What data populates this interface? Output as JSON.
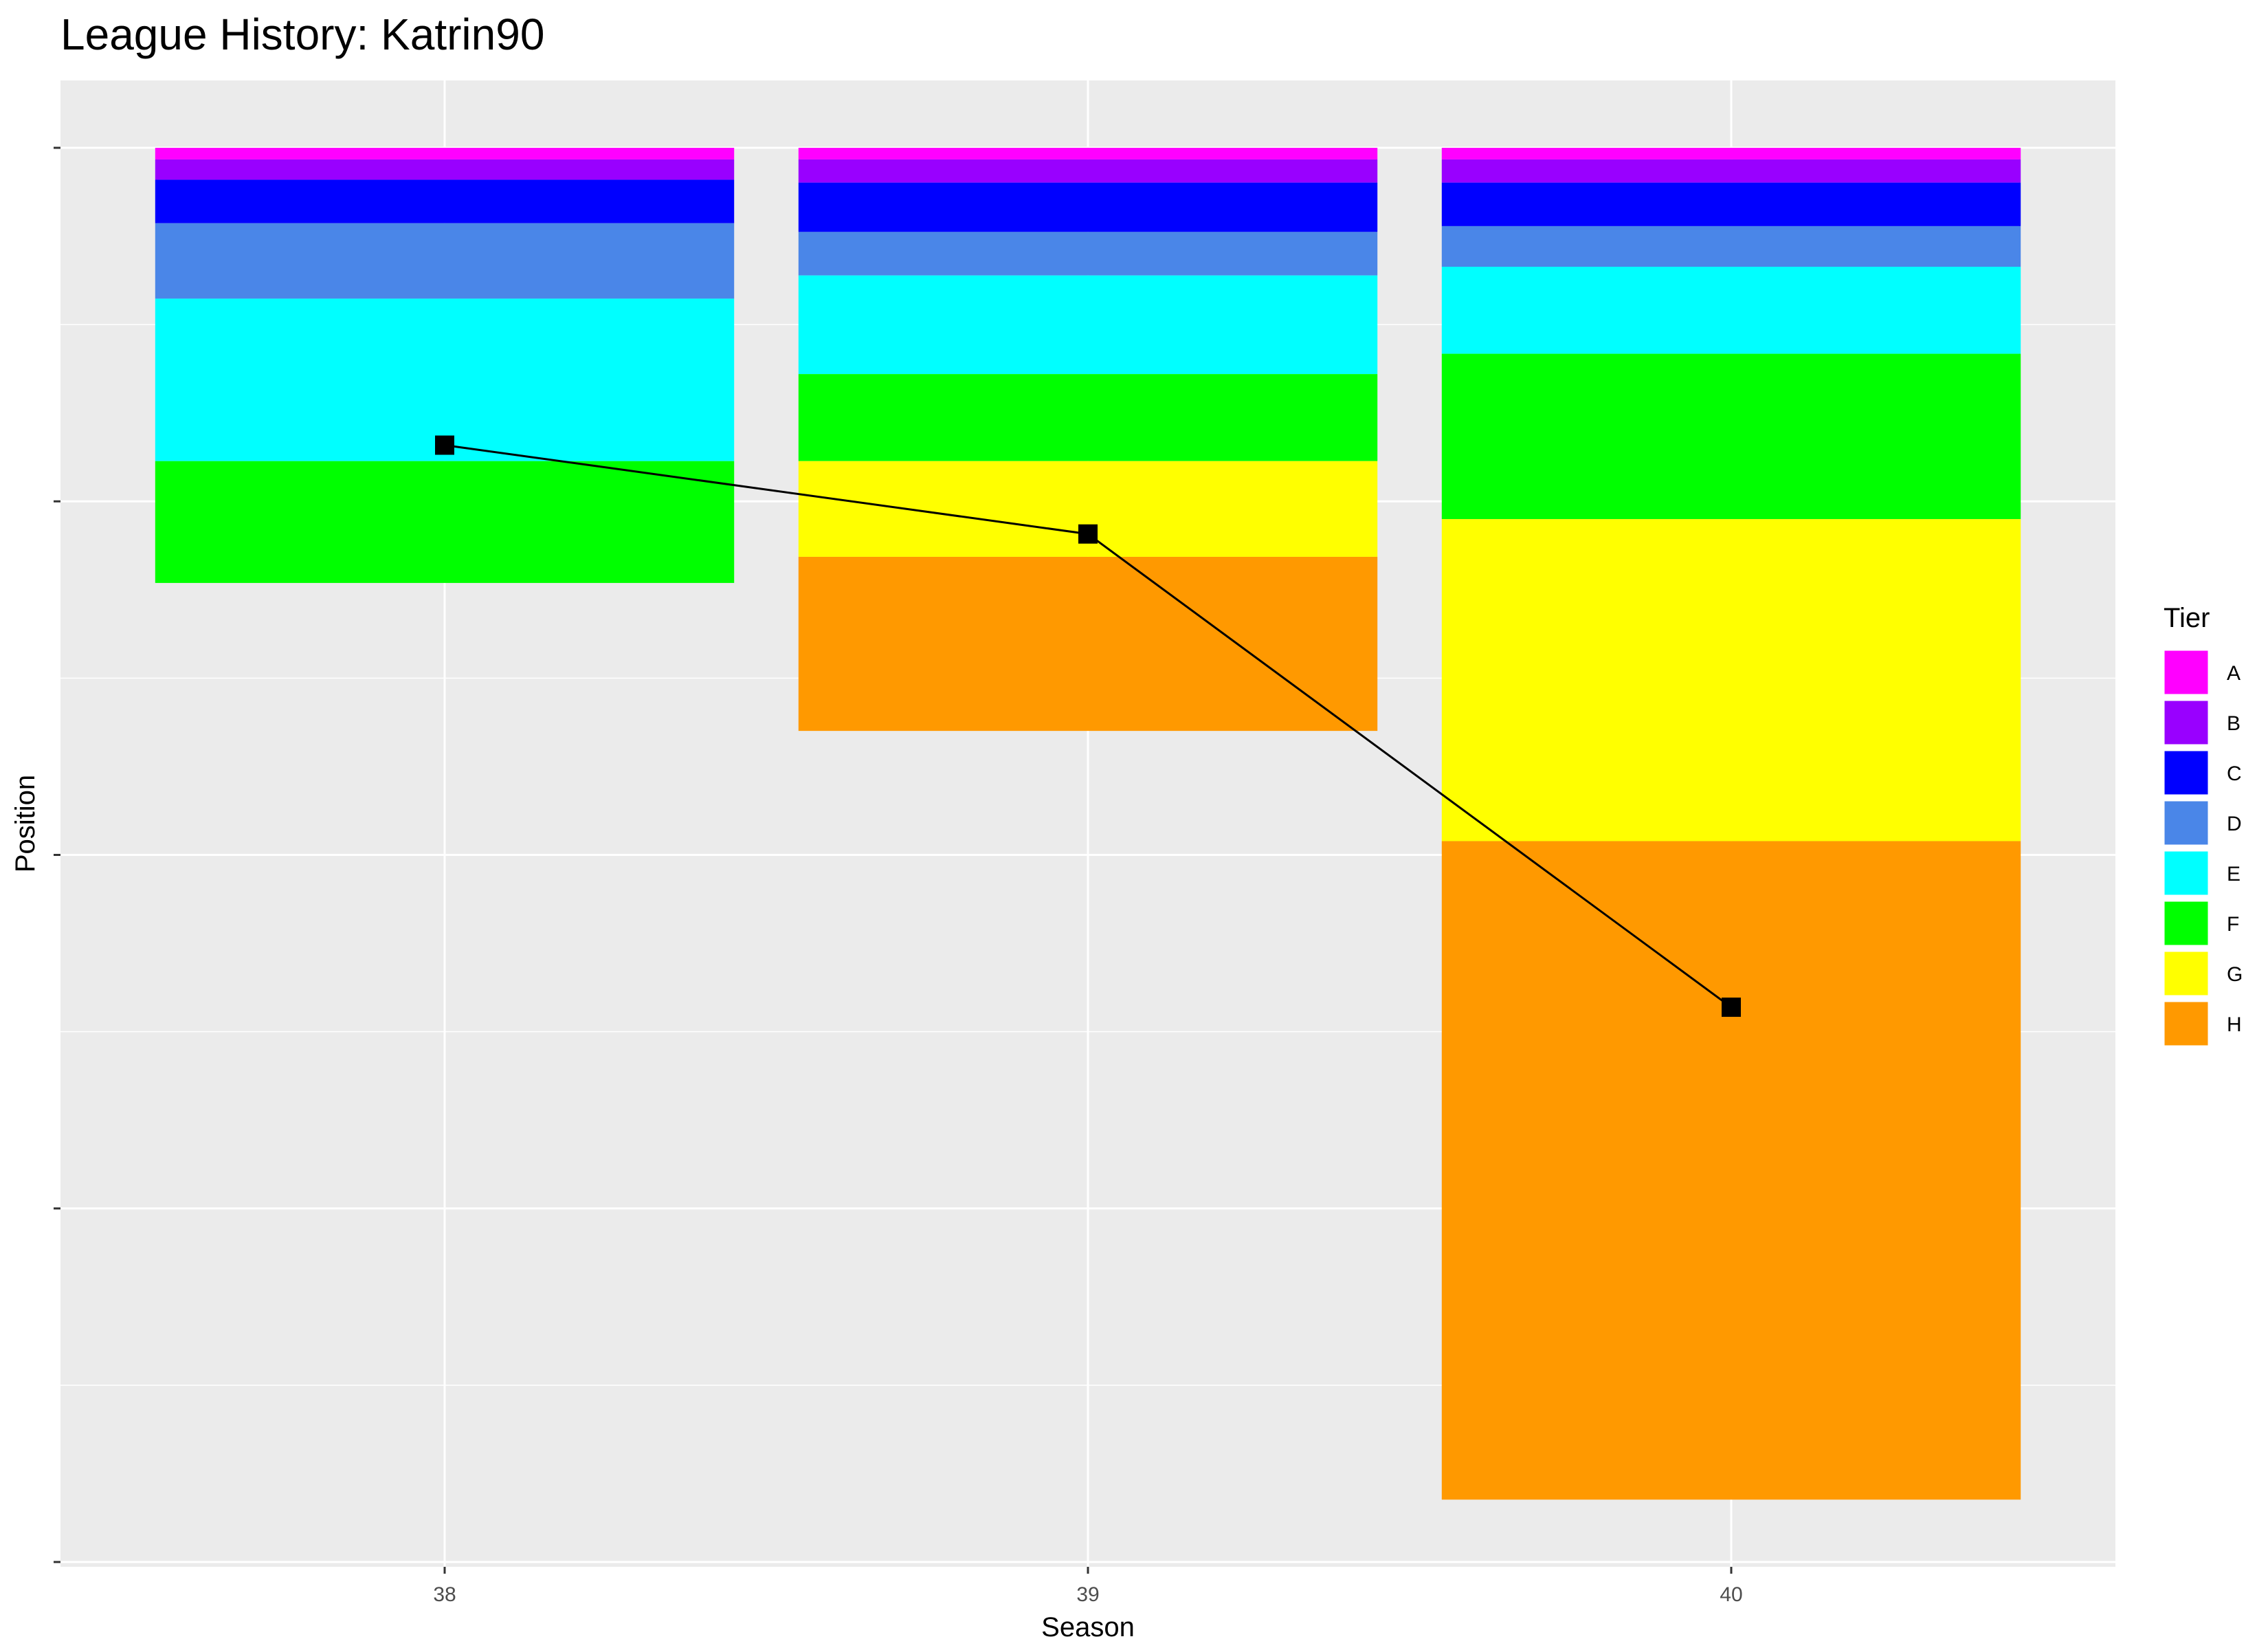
{
  "chart_data": {
    "type": "bar",
    "title": "League History: Katrin90",
    "xlabel": "Season",
    "ylabel": "Position",
    "y_tick_labels": "none",
    "y_reversed": true,
    "ylim": [
      0,
      3900
    ],
    "grid": true,
    "legend": {
      "title": "Tier",
      "position": "right"
    },
    "categories": [
      "38",
      "39",
      "40"
    ],
    "tiers": [
      {
        "name": "A",
        "color": "#FF00FF"
      },
      {
        "name": "B",
        "color": "#9900FF"
      },
      {
        "name": "C",
        "color": "#0000FF"
      },
      {
        "name": "D",
        "color": "#4A86E8"
      },
      {
        "name": "E",
        "color": "#00FFFF"
      },
      {
        "name": "F",
        "color": "#00FF00"
      },
      {
        "name": "G",
        "color": "#FFFF00"
      },
      {
        "name": "H",
        "color": "#FF9900"
      }
    ],
    "series": [
      {
        "name": "A",
        "values": [
          32,
          32,
          32
        ]
      },
      {
        "name": "B",
        "values": [
          56,
          64,
          64
        ]
      },
      {
        "name": "C",
        "values": [
          120,
          136,
          120
        ]
      },
      {
        "name": "D",
        "values": [
          208,
          120,
          112
        ]
      },
      {
        "name": "E",
        "values": [
          448,
          272,
          240
        ]
      },
      {
        "name": "F",
        "values": [
          336,
          240,
          456
        ]
      },
      {
        "name": "G",
        "values": [
          0,
          264,
          888
        ]
      },
      {
        "name": "H",
        "values": [
          0,
          480,
          1816
        ]
      }
    ],
    "position_line": {
      "x": [
        "38",
        "39",
        "40"
      ],
      "y": [
        820,
        1065,
        2370
      ]
    }
  }
}
